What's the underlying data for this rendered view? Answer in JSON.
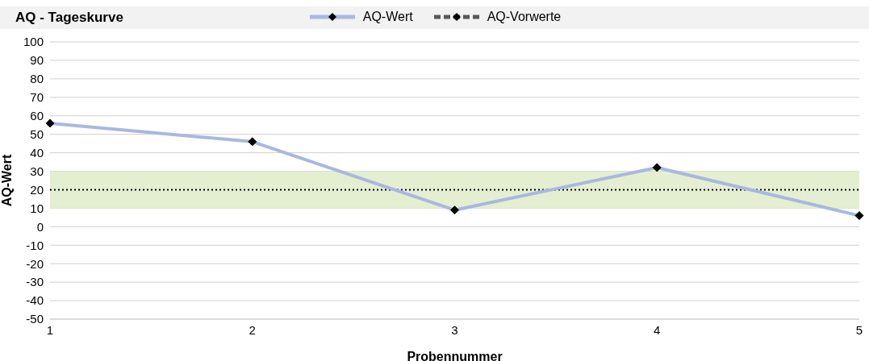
{
  "chart_data": {
    "type": "line",
    "title": "AQ - Tageskurve",
    "xlabel": "Probennummer",
    "ylabel": "AQ-Wert",
    "categories": [
      "1",
      "2",
      "3",
      "4",
      "5"
    ],
    "series": [
      {
        "name": "AQ-Wert",
        "color": "#a9b8e0",
        "values": [
          56,
          46,
          9,
          32,
          6
        ]
      },
      {
        "name": "AQ-Vorwerte",
        "color": "#595959",
        "line_style": "dashed",
        "values": [
          null,
          null,
          null,
          null,
          null
        ]
      }
    ],
    "ylim": [
      -50,
      100
    ],
    "yticks": [
      -50,
      -40,
      -30,
      -20,
      -10,
      0,
      10,
      20,
      30,
      40,
      50,
      60,
      70,
      80,
      90,
      100
    ],
    "bands": [
      {
        "axis": "y",
        "from": 10,
        "to": 30,
        "color": "#e4efd2"
      }
    ],
    "ref_lines": [
      {
        "axis": "y",
        "value": 20,
        "color": "#000000",
        "line_style": "dotted"
      }
    ],
    "grid": "y",
    "legend": "top",
    "marker": "diamond",
    "line_style": "solid"
  }
}
